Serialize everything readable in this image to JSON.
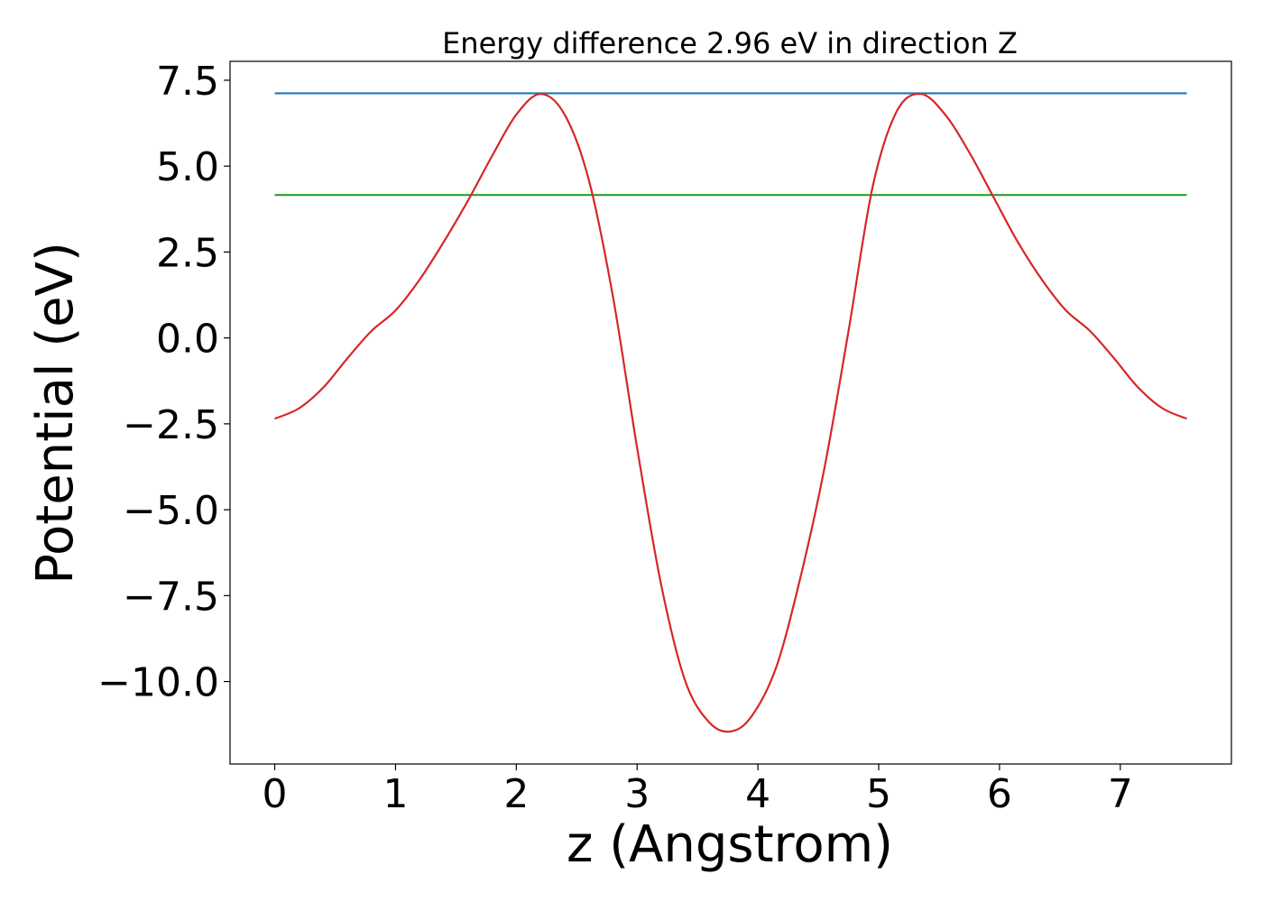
{
  "chart_data": {
    "type": "line",
    "title": "Energy difference 2.96 eV in direction Z",
    "xlabel": "z (Angstrom)",
    "ylabel": "Potential (eV)",
    "xlim": [
      -0.37,
      7.92
    ],
    "ylim": [
      -12.4,
      8.05
    ],
    "xticks": [
      0,
      1,
      2,
      3,
      4,
      5,
      6,
      7
    ],
    "xtick_labels": [
      "0",
      "1",
      "2",
      "3",
      "4",
      "5",
      "6",
      "7"
    ],
    "yticks": [
      7.5,
      5.0,
      2.5,
      0.0,
      -2.5,
      -5.0,
      -7.5,
      -10.0
    ],
    "ytick_labels": [
      "7.5",
      "5.0",
      "2.5",
      "0.0",
      "−2.5",
      "−5.0",
      "−7.5",
      "−10.0"
    ],
    "grid": false,
    "series": [
      {
        "color": "#1f77b4",
        "x": [
          0,
          7.55
        ],
        "y": [
          7.12,
          7.12
        ]
      },
      {
        "color": "#2ca02c",
        "x": [
          0,
          7.55
        ],
        "y": [
          4.16,
          4.16
        ]
      },
      {
        "color": "#d62728",
        "x": [
          0,
          0.2,
          0.4,
          0.6,
          0.8,
          1.0,
          1.2,
          1.4,
          1.6,
          1.8,
          2.0,
          2.2,
          2.4,
          2.6,
          2.8,
          3.0,
          3.2,
          3.4,
          3.6,
          3.78,
          3.95,
          4.15,
          4.35,
          4.55,
          4.75,
          4.95,
          5.15,
          5.35,
          5.55,
          5.75,
          5.95,
          6.15,
          6.35,
          6.55,
          6.75,
          6.95,
          7.15,
          7.35,
          7.55
        ],
        "y": [
          -2.35,
          -2.05,
          -1.45,
          -0.6,
          0.2,
          0.8,
          1.7,
          2.8,
          4.0,
          5.3,
          6.5,
          7.1,
          6.5,
          4.6,
          1.2,
          -3.2,
          -7.2,
          -10.0,
          -11.2,
          -11.45,
          -11.0,
          -9.6,
          -7.0,
          -3.8,
          0.2,
          4.4,
          6.6,
          7.1,
          6.5,
          5.4,
          4.1,
          2.8,
          1.7,
          0.8,
          0.2,
          -0.6,
          -1.45,
          -2.05,
          -2.35
        ]
      }
    ]
  }
}
